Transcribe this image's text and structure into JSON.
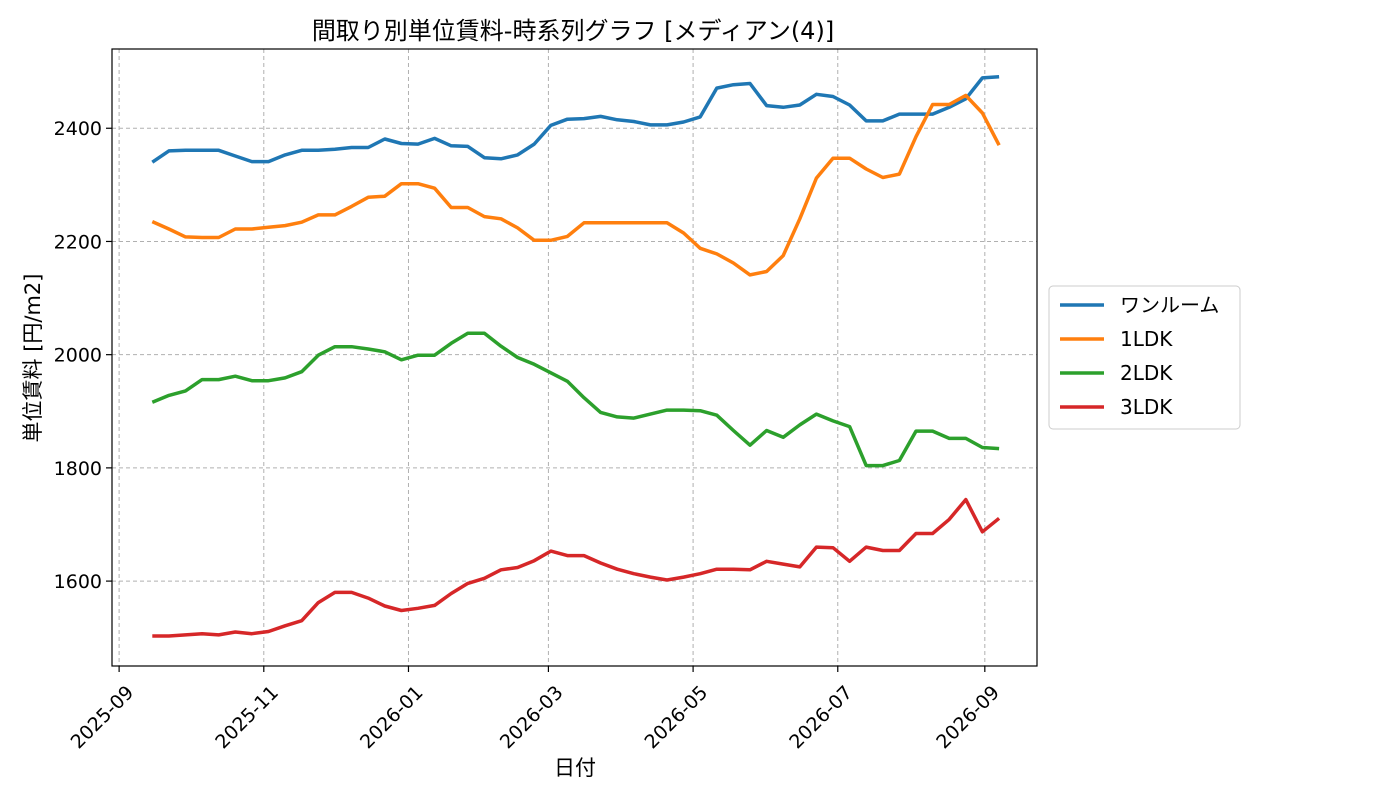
{
  "chart_data": {
    "type": "line",
    "title": "間取り別単位賃料-時系列グラフ [メディアン(4)]",
    "xlabel": "日付",
    "ylabel": "単位賃料 [円/m2]",
    "xlim": [
      "2025-08-29",
      "2026-09-23"
    ],
    "ylim": [
      1450,
      2540
    ],
    "x_ticks": [
      "2025-09",
      "2025-11",
      "2026-01",
      "2026-03",
      "2026-05",
      "2026-07",
      "2026-09"
    ],
    "y_ticks": [
      1600,
      1800,
      2000,
      2200,
      2400
    ],
    "grid": true,
    "legend_position": "right-outside",
    "x": [
      "2025-09-15",
      "2025-09-22",
      "2025-09-29",
      "2025-10-06",
      "2025-10-13",
      "2025-10-20",
      "2025-10-27",
      "2025-11-03",
      "2025-11-10",
      "2025-11-17",
      "2025-11-24",
      "2025-12-01",
      "2025-12-08",
      "2025-12-15",
      "2025-12-22",
      "2025-12-29",
      "2026-01-05",
      "2026-01-12",
      "2026-01-19",
      "2026-01-26",
      "2026-02-02",
      "2026-02-09",
      "2026-02-16",
      "2026-02-23",
      "2026-03-02",
      "2026-03-09",
      "2026-03-16",
      "2026-03-23",
      "2026-03-30",
      "2026-04-06",
      "2026-04-13",
      "2026-04-20",
      "2026-04-27",
      "2026-05-04",
      "2026-05-11",
      "2026-05-18",
      "2026-05-25",
      "2026-06-01",
      "2026-06-08",
      "2026-06-15",
      "2026-06-22",
      "2026-06-29",
      "2026-07-06",
      "2026-07-13",
      "2026-07-20",
      "2026-07-27",
      "2026-08-03",
      "2026-08-10",
      "2026-08-17",
      "2026-08-24",
      "2026-08-31",
      "2026-09-07"
    ],
    "series": [
      {
        "name": "ワンルーム",
        "color": "#1f77b4",
        "values": [
          2340,
          2360,
          2361,
          2361,
          2361,
          2351,
          2341,
          2341,
          2353,
          2361,
          2361,
          2363,
          2366,
          2366,
          2381,
          2373,
          2372,
          2382,
          2369,
          2368,
          2348,
          2346,
          2353,
          2372,
          2405,
          2416,
          2417,
          2421,
          2415,
          2412,
          2406,
          2406,
          2411,
          2420,
          2471,
          2477,
          2479,
          2440,
          2437,
          2441,
          2460,
          2456,
          2441,
          2413,
          2413,
          2425,
          2425,
          2425,
          2437,
          2452,
          2489,
          2491
        ]
      },
      {
        "name": "1LDK",
        "color": "#ff7f0e",
        "values": [
          2235,
          2222,
          2208,
          2207,
          2207,
          2222,
          2222,
          2225,
          2228,
          2234,
          2247,
          2247,
          2262,
          2278,
          2280,
          2302,
          2302,
          2294,
          2260,
          2260,
          2244,
          2240,
          2224,
          2202,
          2202,
          2209,
          2233,
          2233,
          2233,
          2233,
          2233,
          2233,
          2215,
          2188,
          2178,
          2162,
          2141,
          2147,
          2175,
          2240,
          2312,
          2347,
          2347,
          2328,
          2313,
          2319,
          2385,
          2442,
          2442,
          2458,
          2427,
          2370
        ]
      },
      {
        "name": "2LDK",
        "color": "#2ca02c",
        "values": [
          1916,
          1928,
          1936,
          1956,
          1956,
          1962,
          1954,
          1954,
          1959,
          1970,
          1999,
          2014,
          2014,
          2010,
          2005,
          1991,
          1999,
          1999,
          2020,
          2038,
          2038,
          2015,
          1995,
          1983,
          1968,
          1953,
          1924,
          1898,
          1890,
          1888,
          1895,
          1902,
          1902,
          1901,
          1893,
          1866,
          1840,
          1866,
          1854,
          1876,
          1895,
          1883,
          1873,
          1804,
          1804,
          1813,
          1865,
          1865,
          1852,
          1852,
          1836,
          1834
        ]
      },
      {
        "name": "3LDK",
        "color": "#d62728",
        "values": [
          1503,
          1503,
          1505,
          1507,
          1505,
          1510,
          1507,
          1511,
          1521,
          1530,
          1562,
          1580,
          1580,
          1570,
          1556,
          1548,
          1552,
          1557,
          1578,
          1596,
          1605,
          1620,
          1624,
          1636,
          1653,
          1645,
          1645,
          1632,
          1621,
          1613,
          1607,
          1602,
          1607,
          1613,
          1621,
          1621,
          1620,
          1635,
          1630,
          1625,
          1660,
          1659,
          1635,
          1660,
          1654,
          1654,
          1684,
          1684,
          1709,
          1744,
          1687,
          1711
        ]
      }
    ]
  }
}
